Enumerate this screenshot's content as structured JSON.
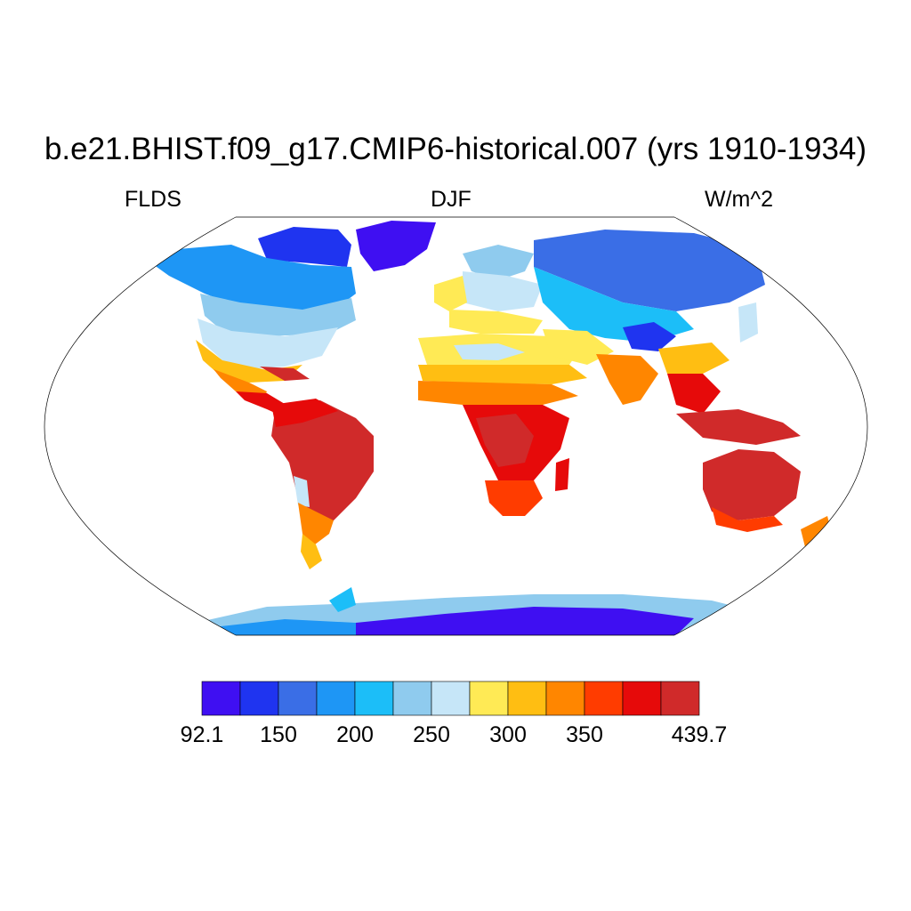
{
  "title": "b.e21.BHIST.f09_g17.CMIP6-historical.007 (yrs 1910-1934)",
  "variable": "FLDS",
  "season": "DJF",
  "units": "W/m^2",
  "colorbar": {
    "colors": [
      "#3f0ff2",
      "#1f34f0",
      "#3a6ee6",
      "#1e96f5",
      "#1cbef8",
      "#8fcbee",
      "#c6e6f8",
      "#ffea55",
      "#ffbe12",
      "#ff8600",
      "#ff3c00",
      "#e60a0a",
      "#d02a2a"
    ],
    "labels": [
      "92.1",
      "150",
      "200",
      "250",
      "300",
      "350",
      "439.7"
    ]
  },
  "map_colors": {
    "very_low": "#3f0ff2",
    "low": "#1f34f0",
    "mid_low": "#3a6ee6",
    "cool": "#1e96f5",
    "cyan": "#1cbef8",
    "light": "#8fcbee",
    "pale": "#c6e6f8",
    "yellow": "#ffea55",
    "amber": "#ffbe12",
    "orange": "#ff8600",
    "red_orange": "#ff3c00",
    "red": "#e60a0a",
    "dark_red": "#d02a2a"
  }
}
